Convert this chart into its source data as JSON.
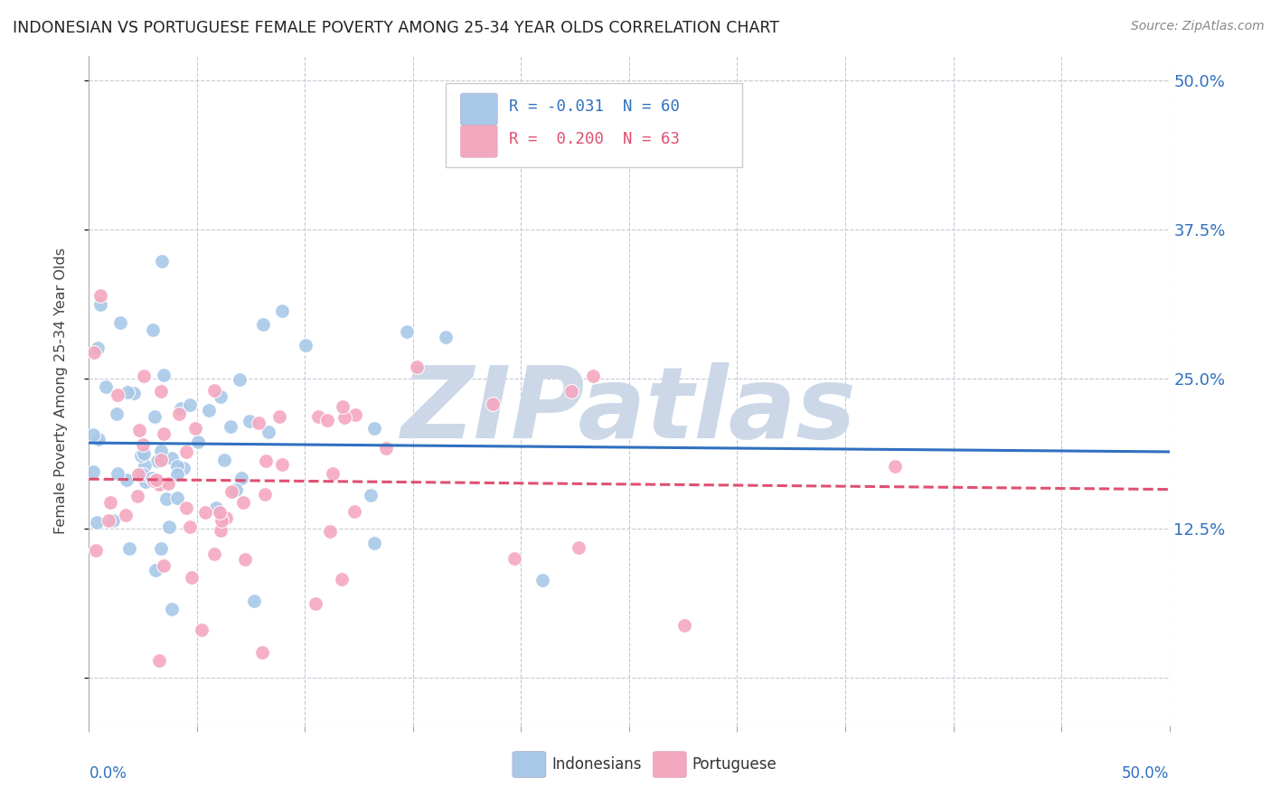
{
  "title": "INDONESIAN VS PORTUGUESE FEMALE POVERTY AMONG 25-34 YEAR OLDS CORRELATION CHART",
  "source": "Source: ZipAtlas.com",
  "ylabel": "Female Poverty Among 25-34 Year Olds",
  "xlim": [
    0.0,
    0.5
  ],
  "ylim": [
    -0.04,
    0.52
  ],
  "indonesian_R": -0.031,
  "indonesian_N": 60,
  "portuguese_R": 0.2,
  "portuguese_N": 63,
  "blue_color": "#a8c8e8",
  "pink_color": "#f4a8c0",
  "blue_line_color": "#3070c0",
  "pink_line_color": "#e05070",
  "blue_text_color": "#3070c0",
  "pink_text_color": "#e05070",
  "watermark_color": "#ccd8e8",
  "background_color": "#ffffff",
  "grid_color": "#c8c8d8",
  "yticks": [
    0.0,
    0.125,
    0.25,
    0.375,
    0.5
  ],
  "yticklabels": [
    "",
    "12.5%",
    "25.0%",
    "37.5%",
    "50.0%"
  ],
  "xtick_minor": [
    0.05,
    0.1,
    0.15,
    0.2,
    0.25,
    0.3,
    0.35,
    0.4,
    0.45,
    0.5
  ],
  "legend_R_indo": "R = -0.031",
  "legend_N_indo": "N = 60",
  "legend_R_port": "R =  0.200",
  "legend_N_port": "N = 63"
}
